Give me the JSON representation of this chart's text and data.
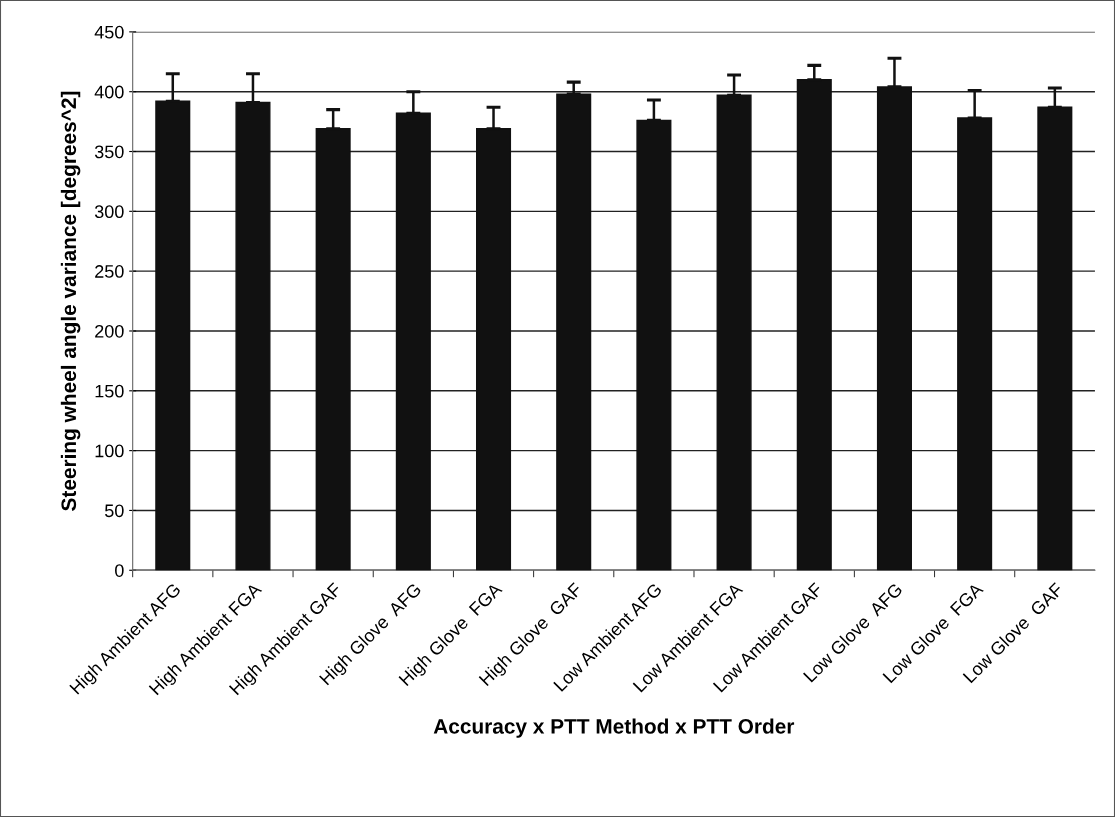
{
  "chart_data": {
    "type": "bar",
    "xlabel": "Accuracy x PTT Method x PTT Order",
    "ylabel": "Steering wheel angle variance [degrees^2]",
    "categories": [
      "High Ambient AFG",
      "High Ambient FGA",
      "High Ambient GAF",
      "High Glove  AFG",
      "High Glove  FGA",
      "High Glove  GAF",
      "Low Ambient AFG",
      "Low Ambient FGA",
      "Low Ambient GAF",
      "Low Glove  AFG",
      "Low Glove  FGA",
      "Low Glove  GAF"
    ],
    "values": [
      392,
      391,
      369,
      382,
      369,
      398,
      376,
      397,
      410,
      404,
      378,
      387
    ],
    "errors": [
      [
        392,
        415
      ],
      [
        391,
        415
      ],
      [
        369,
        385
      ],
      [
        382,
        400
      ],
      [
        369,
        387
      ],
      [
        398,
        408
      ],
      [
        376,
        393
      ],
      [
        397,
        414
      ],
      [
        410,
        422
      ],
      [
        404,
        428
      ],
      [
        378,
        401
      ],
      [
        387,
        403
      ]
    ],
    "color": "#111111",
    "ylim": [
      0,
      450
    ],
    "yticks": [
      0,
      50,
      100,
      150,
      200,
      250,
      300,
      350,
      400,
      450
    ],
    "grid": "y",
    "legend": false
  }
}
